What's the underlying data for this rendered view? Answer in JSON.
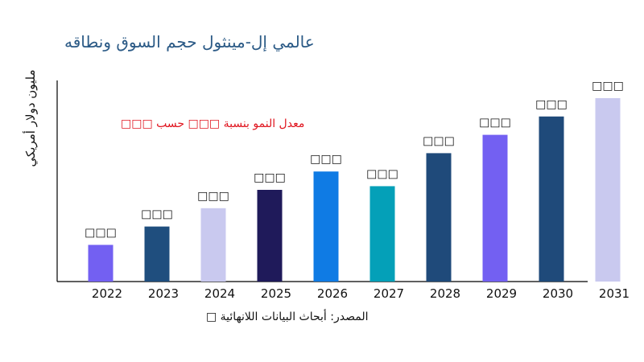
{
  "chart_data": {
    "type": "bar",
    "title": "عالمي إل-مينثول حجم السوق ونطاقه",
    "ylabel": "مليون دولار أمريكي",
    "xlabel": "",
    "annotation": "معدل النمو بنسبة □□□ حسب □□□",
    "source": "المصدر: أبحاث البيانات اللانهائية □",
    "categories": [
      "2022",
      "2023",
      "2024",
      "2025",
      "2026",
      "2027",
      "2028",
      "2029",
      "2030",
      "2031"
    ],
    "values": [
      2.0,
      3.0,
      4.0,
      5.0,
      6.0,
      5.2,
      7.0,
      8.0,
      9.0,
      10.0
    ],
    "data_labels": [
      "□□□",
      "□□□",
      "□□□",
      "□□□",
      "□□□",
      "□□□",
      "□□□",
      "□□□",
      "□□□",
      "□□□"
    ],
    "colors": [
      "#7360f2",
      "#1f4e7e",
      "#c9c9ef",
      "#1f1a5a",
      "#0f7be4",
      "#04a0b8",
      "#1f4a7a",
      "#7360f2",
      "#1f4a7a",
      "#c9c9ef"
    ],
    "ylim": [
      0,
      11
    ],
    "grid": false,
    "legend": "none"
  }
}
